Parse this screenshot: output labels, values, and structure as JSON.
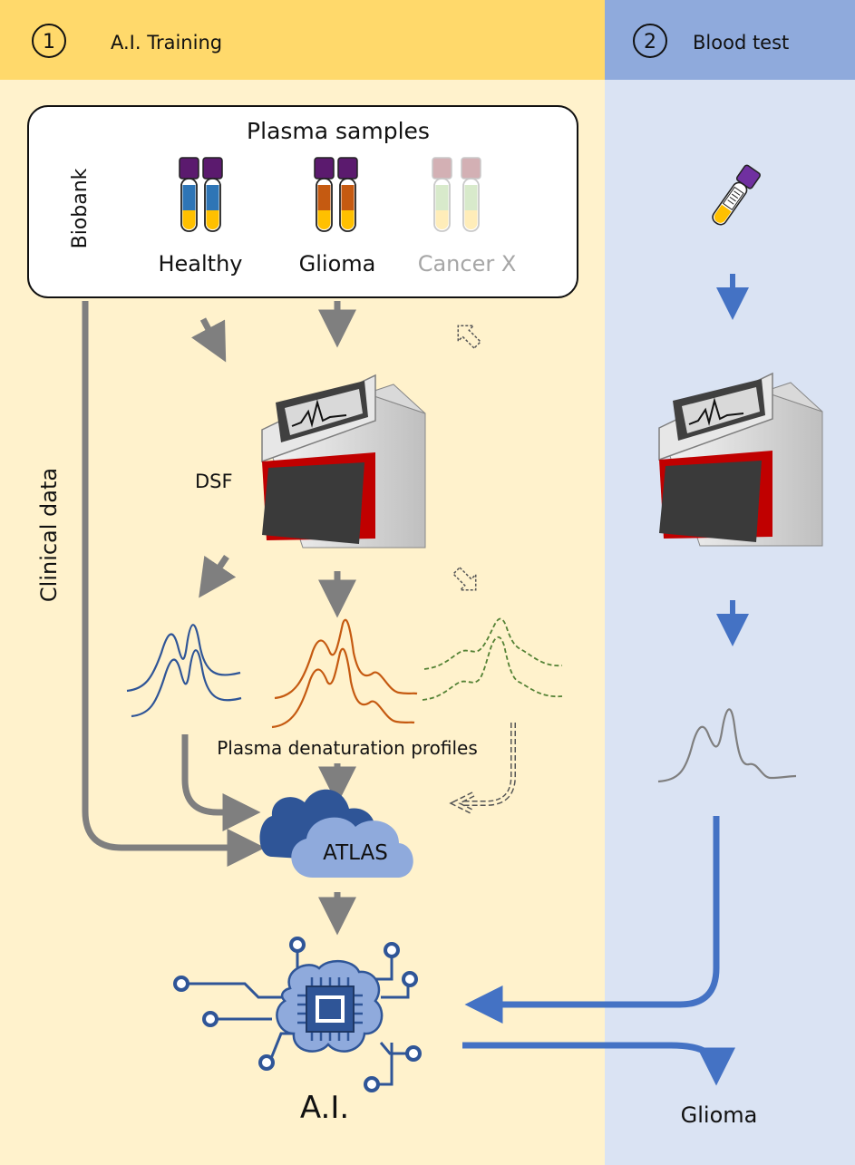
{
  "panels": {
    "training": {
      "number": "1",
      "title": "A.I. Training"
    },
    "blood_test": {
      "number": "2",
      "title": "Blood test"
    }
  },
  "biobank": {
    "title": "Plasma samples",
    "side_label": "Biobank",
    "groups": [
      "Healthy",
      "Glioma",
      "Cancer X"
    ]
  },
  "labels": {
    "clinical": "Clinical data",
    "dsf": "DSF",
    "profiles": "Plasma denaturation profiles",
    "atlas": "ATLAS",
    "ai": "A.I.",
    "result": "Glioma"
  },
  "colors": {
    "left_header": "#ffd96b",
    "left_body": "#fff2cc",
    "right_header": "#8faadc",
    "right_body": "#dae3f3",
    "healthy_curve": "#2f5597",
    "glioma_curve": "#c55a11",
    "cancerx_curve": "#70ad47",
    "grey_arrow": "#7f7f7f",
    "blue_arrow": "#4472c4",
    "instrument_red": "#c00000",
    "cap_purple": "#5b1a6e"
  }
}
